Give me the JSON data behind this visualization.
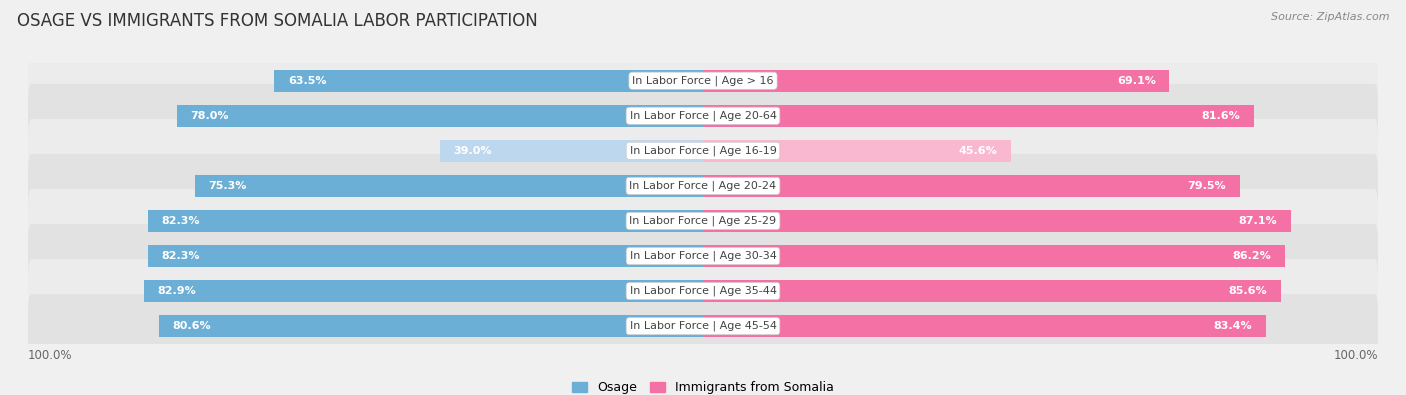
{
  "title": "OSAGE VS IMMIGRANTS FROM SOMALIA LABOR PARTICIPATION",
  "source": "Source: ZipAtlas.com",
  "categories": [
    "In Labor Force | Age > 16",
    "In Labor Force | Age 20-64",
    "In Labor Force | Age 16-19",
    "In Labor Force | Age 20-24",
    "In Labor Force | Age 25-29",
    "In Labor Force | Age 30-34",
    "In Labor Force | Age 35-44",
    "In Labor Force | Age 45-54"
  ],
  "osage_values": [
    63.5,
    78.0,
    39.0,
    75.3,
    82.3,
    82.3,
    82.9,
    80.6
  ],
  "somalia_values": [
    69.1,
    81.6,
    45.6,
    79.5,
    87.1,
    86.2,
    85.6,
    83.4
  ],
  "osage_color": "#6BAED6",
  "osage_color_light": "#BDD7EE",
  "somalia_color": "#F471A5",
  "somalia_color_light": "#F9B8D0",
  "row_bg_color": "#e8e8e8",
  "row_bg_odd": "#ececec",
  "row_bg_even": "#e2e2e2",
  "background_color": "#f0f0f0",
  "bar_height": 0.62,
  "max_value": 100.0,
  "legend_osage": "Osage",
  "legend_somalia": "Immigrants from Somalia",
  "title_fontsize": 12,
  "label_fontsize": 8,
  "value_fontsize": 8,
  "axis_label_left": "100.0%",
  "axis_label_right": "100.0%"
}
